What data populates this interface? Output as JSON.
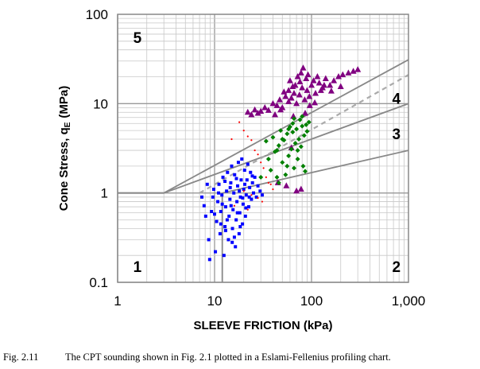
{
  "chart_data": {
    "type": "scatter",
    "title": "",
    "xlabel": "SLEEVE FRICTION (kPa)",
    "ylabel_main": "Cone Stress, q",
    "ylabel_sub": "E",
    "ylabel_unit": "(MPa)",
    "x_scale": "log",
    "y_scale": "log",
    "xlim": [
      1,
      1000
    ],
    "ylim": [
      0.1,
      100
    ],
    "x_ticks": [
      "1",
      "10",
      "100",
      "1,000"
    ],
    "y_ticks": [
      "0.1",
      "1",
      "10",
      "100"
    ],
    "grid": true,
    "legend": "none",
    "zone_labels": [
      {
        "text": "1",
        "fs": 1.6,
        "qe": 0.15
      },
      {
        "text": "2",
        "fs": 750,
        "qe": 0.15
      },
      {
        "text": "3",
        "fs": 750,
        "qe": 4.6
      },
      {
        "text": "4",
        "fs": 750,
        "qe": 11.5
      },
      {
        "text": "5",
        "fs": 1.6,
        "qe": 55
      }
    ],
    "boundaries": [
      {
        "style": "solid",
        "x": [
          1,
          3,
          1000
        ],
        "y": [
          1,
          1,
          31
        ]
      },
      {
        "style": "solid",
        "x": [
          1,
          3,
          1000
        ],
        "y": [
          1,
          1,
          10
        ]
      },
      {
        "style": "solid",
        "x": [
          12,
          1000
        ],
        "y": [
          1,
          3
        ]
      },
      {
        "style": "solid",
        "x": [
          12,
          12
        ],
        "y": [
          0.1,
          1
        ]
      },
      {
        "style": "dashed",
        "x": [
          7,
          1000
        ],
        "y": [
          1,
          21
        ]
      }
    ],
    "series": [
      {
        "marker": "square",
        "color": "#0000ff",
        "points": [
          [
            7.4,
            0.9
          ],
          [
            7.8,
            0.72
          ],
          [
            8.1,
            0.55
          ],
          [
            8.4,
            1.25
          ],
          [
            8.7,
            0.3
          ],
          [
            8.9,
            0.18
          ],
          [
            9.3,
            0.62
          ],
          [
            9.6,
            0.9
          ],
          [
            9.8,
            1.1
          ],
          [
            10.2,
            0.22
          ],
          [
            10.5,
            0.48
          ],
          [
            10.8,
            0.8
          ],
          [
            11.1,
            1.25
          ],
          [
            11.4,
            0.35
          ],
          [
            11.6,
            0.62
          ],
          [
            11.9,
            0.95
          ],
          [
            12.2,
            1.5
          ],
          [
            12.5,
            0.2
          ],
          [
            12.8,
            0.42
          ],
          [
            13.0,
            0.7
          ],
          [
            13.3,
            1.05
          ],
          [
            13.6,
            1.7
          ],
          [
            13.9,
            0.3
          ],
          [
            14.1,
            0.55
          ],
          [
            14.4,
            0.85
          ],
          [
            14.7,
            1.3
          ],
          [
            15.0,
            2.0
          ],
          [
            15.3,
            0.4
          ],
          [
            15.5,
            0.65
          ],
          [
            15.8,
            1.0
          ],
          [
            16.1,
            1.6
          ],
          [
            16.4,
            0.25
          ],
          [
            16.7,
            0.5
          ],
          [
            17.0,
            0.8
          ],
          [
            17.3,
            1.2
          ],
          [
            17.6,
            2.2
          ],
          [
            17.9,
            0.35
          ],
          [
            18.2,
            0.6
          ],
          [
            18.5,
            0.9
          ],
          [
            18.8,
            1.4
          ],
          [
            19.1,
            2.4
          ],
          [
            19.4,
            0.45
          ],
          [
            19.7,
            0.75
          ],
          [
            20.0,
            1.1
          ],
          [
            20.4,
            1.8
          ],
          [
            20.8,
            0.55
          ],
          [
            21.2,
            0.95
          ],
          [
            21.6,
            1.4
          ],
          [
            22.0,
            2.1
          ],
          [
            22.5,
            0.7
          ],
          [
            23.0,
            1.15
          ],
          [
            23.5,
            1.7
          ],
          [
            24.0,
            0.85
          ],
          [
            24.6,
            1.3
          ],
          [
            25.2,
            1.0
          ],
          [
            26.0,
            1.5
          ],
          [
            27.0,
            0.9
          ],
          [
            28.0,
            1.2
          ],
          [
            29.5,
            1.05
          ],
          [
            31.0,
            0.95
          ],
          [
            11.0,
            1.0
          ],
          [
            13.5,
            0.5
          ],
          [
            16.0,
            0.32
          ],
          [
            18.0,
            1.05
          ],
          [
            21.0,
            0.68
          ],
          [
            12.0,
            0.75
          ],
          [
            14.5,
            1.15
          ],
          [
            17.2,
            0.6
          ],
          [
            19.5,
            0.88
          ],
          [
            15.2,
            0.28
          ],
          [
            13.0,
            0.38
          ],
          [
            20.5,
            1.25
          ],
          [
            16.8,
            1.45
          ],
          [
            10.0,
            0.58
          ],
          [
            12.8,
            1.35
          ],
          [
            22.8,
            0.9
          ],
          [
            18.4,
            0.42
          ],
          [
            14.8,
            0.72
          ],
          [
            24.5,
            1.55
          ],
          [
            11.6,
            0.45
          ]
        ]
      },
      {
        "marker": "triangle",
        "color": "#800080",
        "points": [
          [
            22,
            8
          ],
          [
            24,
            7.5
          ],
          [
            26,
            8.5
          ],
          [
            28,
            7.8
          ],
          [
            30,
            8.2
          ],
          [
            33,
            9
          ],
          [
            36,
            8.4
          ],
          [
            40,
            10
          ],
          [
            44,
            9.5
          ],
          [
            47,
            11
          ],
          [
            50,
            9
          ],
          [
            54,
            12
          ],
          [
            58,
            10.5
          ],
          [
            62,
            11.5
          ],
          [
            66,
            13
          ],
          [
            70,
            10
          ],
          [
            75,
            12.5
          ],
          [
            80,
            15
          ],
          [
            85,
            11
          ],
          [
            90,
            14
          ],
          [
            95,
            12
          ],
          [
            100,
            16
          ],
          [
            110,
            13
          ],
          [
            120,
            17
          ],
          [
            130,
            15
          ],
          [
            140,
            19
          ],
          [
            155,
            16
          ],
          [
            170,
            18
          ],
          [
            190,
            20
          ],
          [
            210,
            21
          ],
          [
            240,
            22
          ],
          [
            270,
            23
          ],
          [
            300,
            24
          ],
          [
            60,
            18
          ],
          [
            68,
            16
          ],
          [
            72,
            20
          ],
          [
            78,
            22
          ],
          [
            82,
            25
          ],
          [
            88,
            19
          ],
          [
            92,
            21
          ],
          [
            105,
            18
          ],
          [
            115,
            20
          ],
          [
            125,
            14
          ],
          [
            135,
            16
          ],
          [
            58,
            14
          ],
          [
            64,
            15.5
          ],
          [
            48,
            8.5
          ],
          [
            42,
            7.5
          ],
          [
            52,
            13.5
          ],
          [
            76,
            17.5
          ],
          [
            96,
            9.5
          ],
          [
            65,
            7.2
          ],
          [
            86,
            7.8
          ],
          [
            108,
            10.2
          ],
          [
            160,
            13.8
          ],
          [
            200,
            15.5
          ],
          [
            45,
            1.3
          ],
          [
            55,
            1.2
          ],
          [
            70,
            1.05
          ],
          [
            62,
            3.2
          ],
          [
            78,
            1.1
          ]
        ]
      },
      {
        "marker": "diamond",
        "color": "#008000",
        "points": [
          [
            34,
            3.8
          ],
          [
            36,
            2.4
          ],
          [
            38,
            1.8
          ],
          [
            40,
            4.2
          ],
          [
            42,
            2.9
          ],
          [
            44,
            1.5
          ],
          [
            46,
            3.4
          ],
          [
            48,
            5.0
          ],
          [
            50,
            2.2
          ],
          [
            52,
            3.9
          ],
          [
            54,
            1.6
          ],
          [
            56,
            4.6
          ],
          [
            58,
            2.6
          ],
          [
            60,
            5.5
          ],
          [
            62,
            3.1
          ],
          [
            64,
            6.0
          ],
          [
            66,
            1.9
          ],
          [
            68,
            3.6
          ],
          [
            70,
            5.2
          ],
          [
            72,
            2.4
          ],
          [
            74,
            4.0
          ],
          [
            76,
            6.6
          ],
          [
            78,
            3.3
          ],
          [
            80,
            7.2
          ],
          [
            82,
            2.0
          ],
          [
            84,
            4.4
          ],
          [
            86,
            1.75
          ],
          [
            88,
            5.8
          ],
          [
            30,
            1.5
          ],
          [
            46,
            1.3
          ],
          [
            56,
            2.0
          ],
          [
            64,
            4.8
          ],
          [
            72,
            3.0
          ],
          [
            58,
            5.2
          ],
          [
            50,
            4.0
          ],
          [
            66,
            6.8
          ],
          [
            80,
            5.6
          ],
          [
            90,
            4.9
          ],
          [
            94,
            6.2
          ],
          [
            44,
            3.0
          ]
        ]
      },
      {
        "marker": "dot",
        "color": "#ff0000",
        "points": [
          [
            18,
            6.2
          ],
          [
            20,
            5.0
          ],
          [
            22,
            4.3
          ],
          [
            24,
            3.9
          ],
          [
            15,
            4.0
          ],
          [
            26,
            3.0
          ],
          [
            28,
            2.7
          ],
          [
            30,
            2.2
          ],
          [
            32,
            1.9
          ],
          [
            34,
            1.5
          ],
          [
            36,
            1.3
          ],
          [
            38,
            1.25
          ],
          [
            40,
            1.1
          ],
          [
            20,
            1.05
          ],
          [
            24,
            0.95
          ],
          [
            28,
            0.88
          ],
          [
            31,
            0.8
          ],
          [
            16,
            0.72
          ],
          [
            22,
            0.65
          ]
        ]
      }
    ]
  },
  "caption": {
    "label": "Fig. 2.11",
    "text": "The CPT sounding shown in Fig. 2.1 plotted in a Eslami-Fellenius profiling chart."
  }
}
